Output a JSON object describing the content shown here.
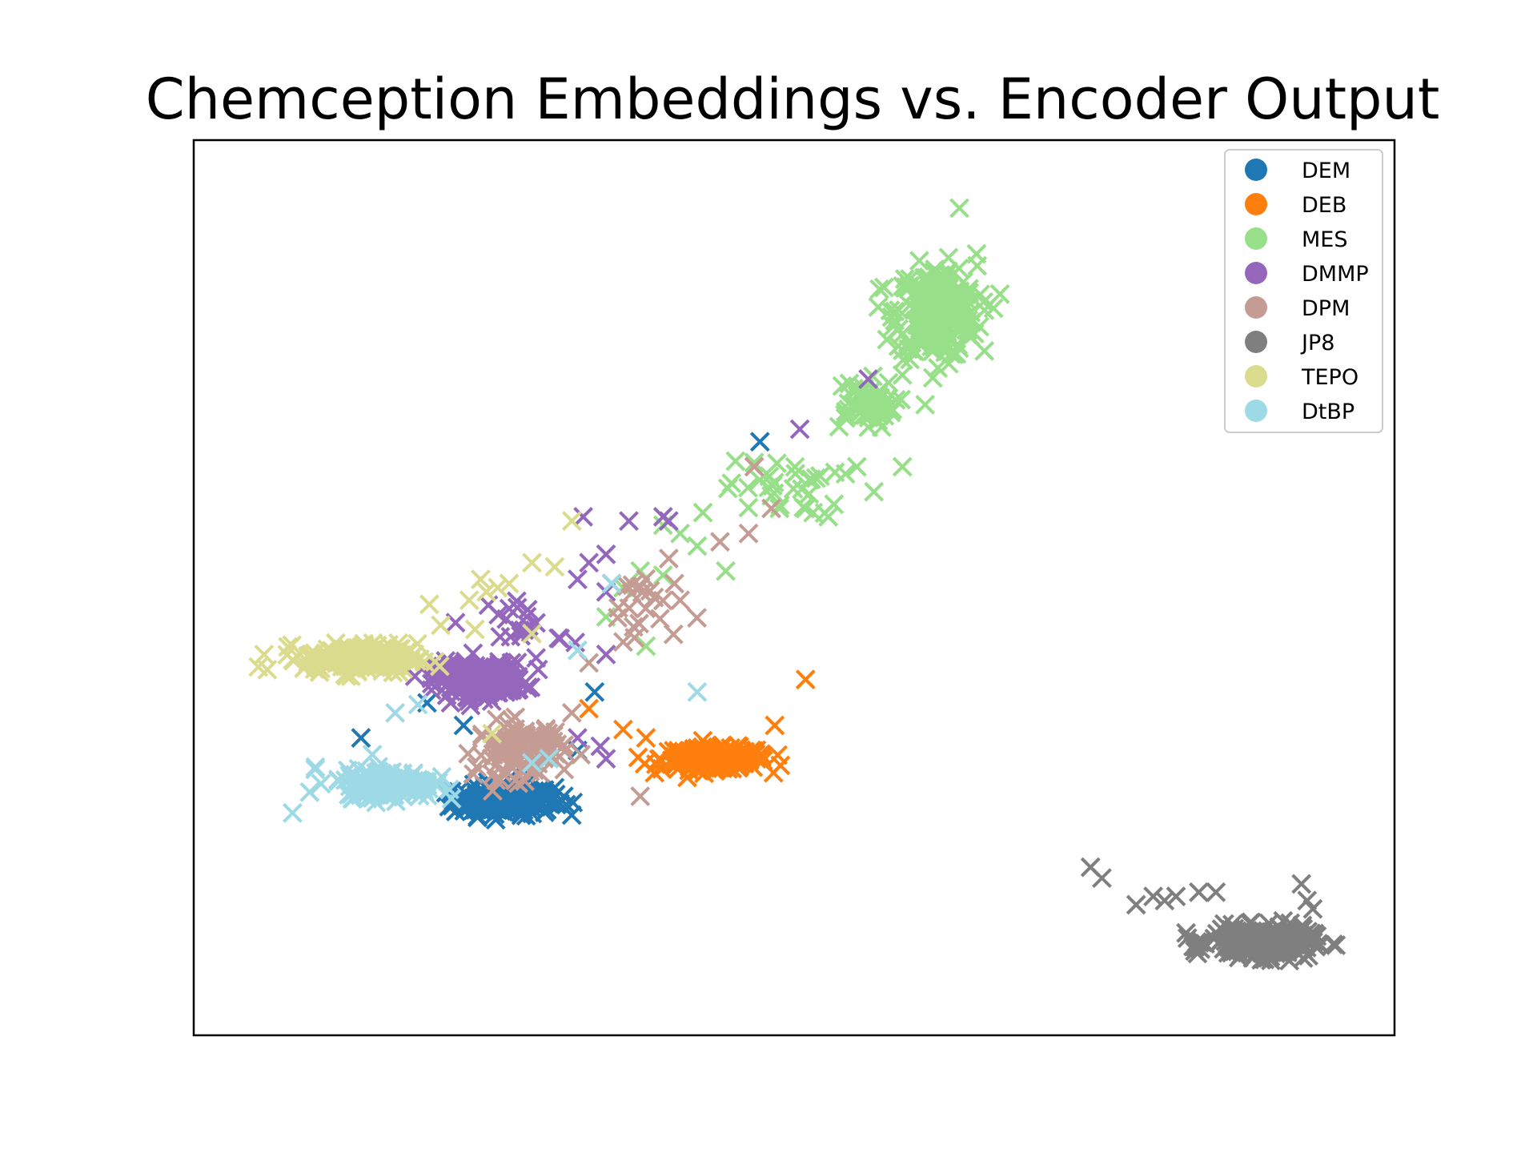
{
  "chart_data": {
    "type": "scatter",
    "title": "Chemception Embeddings vs. Encoder Output",
    "xlabel": "",
    "ylabel": "",
    "xlim": [
      0,
      100
    ],
    "ylim": [
      0,
      100
    ],
    "axis_ticks": "hidden",
    "grid": false,
    "legend_position": "top-right",
    "marker": "x",
    "series": [
      {
        "name": "DEM",
        "color": "#1f77b4",
        "clusters": [
          {
            "center": [
              24.5,
              24.5
            ],
            "spread": [
              4.0,
              1.6
            ],
            "count": 240
          }
        ],
        "points": [
          [
            12.0,
            32.0
          ],
          [
            21.0,
            33.5
          ],
          [
            26.5,
            26.5
          ],
          [
            29.8,
            25.0
          ],
          [
            30.0,
            24.0
          ],
          [
            32.5,
            37.5
          ],
          [
            47.0,
            67.5
          ],
          [
            17.8,
            36.2
          ],
          [
            26.0,
            28.5
          ],
          [
            31.0,
            30.5
          ]
        ]
      },
      {
        "name": "DEB",
        "color": "#ff7f0e",
        "clusters": [
          {
            "center": [
              43.0,
              29.5
            ],
            "spread": [
              4.2,
              1.2
            ],
            "count": 220
          }
        ],
        "points": [
          [
            51.0,
            39.0
          ],
          [
            48.3,
            33.5
          ],
          [
            48.8,
            28.7
          ],
          [
            35.0,
            33.0
          ],
          [
            37.0,
            32.0
          ],
          [
            32.0,
            35.5
          ]
        ]
      },
      {
        "name": "MES",
        "color": "#98df8a",
        "clusters": [
          {
            "center": [
              62.5,
              83.0
            ],
            "spread": [
              3.2,
              5.0
            ],
            "count": 260
          },
          {
            "center": [
              56.0,
              72.0
            ],
            "spread": [
              2.6,
              2.6
            ],
            "count": 60
          },
          {
            "center": [
              49.0,
              62.0
            ],
            "spread": [
              4.5,
              3.0
            ],
            "count": 28
          }
        ],
        "points": [
          [
            64.5,
            95.5
          ],
          [
            67.5,
            83.5
          ],
          [
            66.0,
            90.0
          ],
          [
            59.5,
            75.5
          ],
          [
            55.5,
            64.5
          ],
          [
            53.5,
            60.0
          ],
          [
            57.0,
            61.5
          ],
          [
            59.5,
            64.5
          ],
          [
            44.0,
            52.0
          ],
          [
            41.5,
            55.0
          ],
          [
            40.0,
            56.5
          ],
          [
            38.5,
            57.5
          ],
          [
            36.5,
            52.0
          ],
          [
            35.0,
            50.0
          ],
          [
            37.0,
            43.0
          ],
          [
            33.5,
            46.5
          ],
          [
            38.5,
            51.5
          ],
          [
            42.0,
            59.0
          ],
          [
            53.0,
            58.5
          ],
          [
            51.5,
            63.0
          ],
          [
            46.5,
            65.0
          ],
          [
            48.0,
            61.0
          ]
        ]
      },
      {
        "name": "DMMP",
        "color": "#9467bd",
        "clusters": [
          {
            "center": [
              22.5,
              39.0
            ],
            "spread": [
              3.5,
              1.8
            ],
            "count": 260
          },
          {
            "center": [
              26.5,
              45.5
            ],
            "spread": [
              3.0,
              3.5
            ],
            "count": 22
          }
        ],
        "points": [
          [
            35.5,
            58.0
          ],
          [
            38.5,
            58.5
          ],
          [
            39.0,
            58.0
          ],
          [
            31.5,
            58.5
          ],
          [
            32.0,
            53.0
          ],
          [
            33.5,
            54.0
          ],
          [
            34.0,
            50.5
          ],
          [
            31.0,
            51.0
          ],
          [
            33.5,
            49.5
          ],
          [
            50.5,
            69.0
          ],
          [
            56.5,
            75.0
          ],
          [
            33.5,
            42.0
          ],
          [
            33.5,
            29.5
          ],
          [
            31.0,
            32.0
          ],
          [
            33.0,
            31.0
          ]
        ]
      },
      {
        "name": "DPM",
        "color": "#c49c94",
        "clusters": [
          {
            "center": [
              26.0,
              30.5
            ],
            "spread": [
              3.5,
              3.0
            ],
            "count": 110
          },
          {
            "center": [
              37.0,
              48.0
            ],
            "spread": [
              3.0,
              4.0
            ],
            "count": 18
          }
        ],
        "points": [
          [
            46.5,
            64.5
          ],
          [
            48.0,
            59.5
          ],
          [
            46.0,
            56.5
          ],
          [
            43.5,
            55.5
          ],
          [
            39.0,
            53.5
          ],
          [
            36.0,
            44.0
          ],
          [
            32.0,
            41.0
          ],
          [
            30.5,
            35.0
          ],
          [
            36.5,
            25.0
          ],
          [
            35.0,
            43.5
          ],
          [
            40.0,
            48.5
          ],
          [
            39.5,
            50.5
          ]
        ]
      },
      {
        "name": "JP8",
        "color": "#7f7f7f",
        "clusters": [
          {
            "center": [
              91.0,
              7.5
            ],
            "spread": [
              4.0,
              1.6
            ],
            "count": 300
          }
        ],
        "points": [
          [
            76.0,
            16.5
          ],
          [
            77.0,
            15.2
          ],
          [
            80.0,
            12.0
          ],
          [
            81.5,
            13.0
          ],
          [
            82.5,
            12.5
          ],
          [
            83.5,
            13.0
          ],
          [
            85.5,
            13.5
          ],
          [
            87.0,
            13.5
          ],
          [
            94.5,
            14.5
          ],
          [
            95.0,
            12.5
          ],
          [
            95.5,
            11.5
          ],
          [
            84.5,
            8.0
          ],
          [
            85.0,
            7.0
          ]
        ]
      },
      {
        "name": "TEPO",
        "color": "#dbdb8d",
        "clusters": [
          {
            "center": [
              12.0,
              41.5
            ],
            "spread": [
              4.5,
              1.6
            ],
            "count": 200
          }
        ],
        "points": [
          [
            3.5,
            42.0
          ],
          [
            3.0,
            40.5
          ],
          [
            30.5,
            58.0
          ],
          [
            27.0,
            53.0
          ],
          [
            29.0,
            52.5
          ],
          [
            22.5,
            51.0
          ],
          [
            23.0,
            49.5
          ],
          [
            24.0,
            50.0
          ],
          [
            25.0,
            50.5
          ],
          [
            21.5,
            48.5
          ],
          [
            18.0,
            48.0
          ],
          [
            19.0,
            45.5
          ],
          [
            22.0,
            45.0
          ],
          [
            27.0,
            44.5
          ],
          [
            23.5,
            32.5
          ]
        ]
      },
      {
        "name": "DtBP",
        "color": "#9edae5",
        "clusters": [
          {
            "center": [
              14.5,
              26.5
            ],
            "spread": [
              3.5,
              1.5
            ],
            "count": 220
          }
        ],
        "points": [
          [
            6.0,
            23.0
          ],
          [
            7.5,
            25.5
          ],
          [
            8.5,
            26.5
          ],
          [
            8.0,
            28.5
          ],
          [
            10.0,
            27.0
          ],
          [
            11.0,
            27.5
          ],
          [
            13.0,
            30.0
          ],
          [
            15.0,
            35.0
          ],
          [
            17.0,
            36.0
          ],
          [
            34.0,
            50.5
          ],
          [
            31.0,
            42.5
          ],
          [
            41.5,
            37.5
          ],
          [
            28.5,
            29.5
          ],
          [
            27.0,
            29.0
          ]
        ]
      }
    ]
  }
}
